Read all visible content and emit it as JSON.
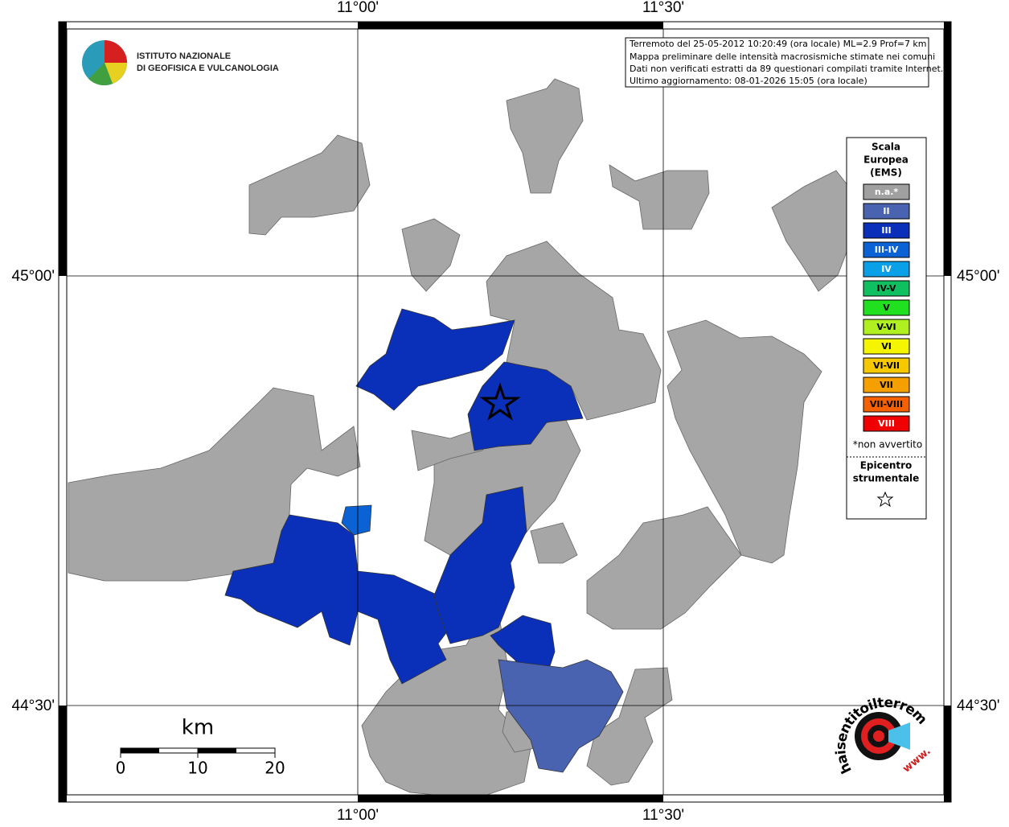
{
  "axes": {
    "top": [
      "11°00'",
      "11°30'"
    ],
    "bottom": [
      "11°00'",
      "11°30'"
    ],
    "left": [
      "45°00'",
      "44°30'"
    ],
    "right": [
      "45°00'",
      "44°30'"
    ]
  },
  "logo": {
    "lines": [
      "ISTITUTO NAZIONALE",
      "DI GEOFISICA E VULCANOLOGIA"
    ]
  },
  "info": {
    "lines": [
      "Terremoto del 25-05-2012 10:20:49 (ora locale) ML=2.9 Prof=7 km",
      "Mappa preliminare delle intensità macrosismiche stimate nei comuni",
      "Dati non verificati estratti da 89 questionari compilati tramite Internet.",
      "Ultimo aggiornamento: 08-01-2026 15:05 (ora locale)"
    ]
  },
  "legend": {
    "title": [
      "Scala",
      "Europea",
      "(EMS)"
    ],
    "items": [
      {
        "label": "n.a.*",
        "color": "#a0a0a0",
        "text_color": "#ffffff"
      },
      {
        "label": "II",
        "color": "#4a63b0",
        "text_color": "#ffffff"
      },
      {
        "label": "III",
        "color": "#0a2fb9",
        "text_color": "#ffffff"
      },
      {
        "label": "III-IV",
        "color": "#0a62d4",
        "text_color": "#ffffff"
      },
      {
        "label": "IV",
        "color": "#0aa0e8",
        "text_color": "#ffffff"
      },
      {
        "label": "IV-V",
        "color": "#10c060",
        "text_color": "#000000"
      },
      {
        "label": "V",
        "color": "#20e020",
        "text_color": "#000000"
      },
      {
        "label": "V-VI",
        "color": "#b0f020",
        "text_color": "#000000"
      },
      {
        "label": "VI",
        "color": "#f5f500",
        "text_color": "#000000"
      },
      {
        "label": "VI-VII",
        "color": "#f5c800",
        "text_color": "#000000"
      },
      {
        "label": "VII",
        "color": "#f5a000",
        "text_color": "#000000"
      },
      {
        "label": "VII-VIII",
        "color": "#f56000",
        "text_color": "#000000"
      },
      {
        "label": "VIII",
        "color": "#f00000",
        "text_color": "#ffffff"
      }
    ],
    "note": "*non avvertito",
    "epicenter": [
      "Epicentro",
      "strumentale"
    ]
  },
  "scale": {
    "unit": "km",
    "labels": [
      "0",
      "10",
      "20"
    ]
  },
  "badge": {
    "text": "haisentitoilterremoto.it",
    "www": "www."
  }
}
